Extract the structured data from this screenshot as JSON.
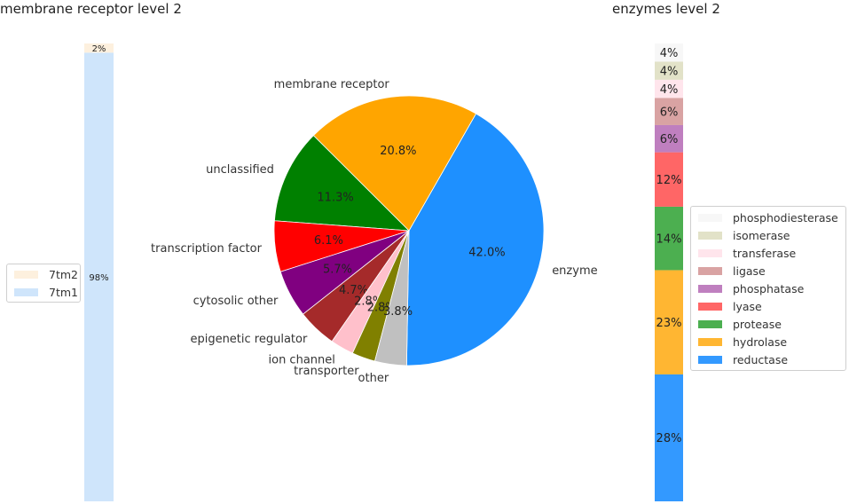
{
  "chart_data": [
    {
      "type": "bar",
      "subtype": "stacked-100",
      "title": "membrane receptor level 2",
      "segments_bottom_to_top": [
        {
          "name": "7tm1",
          "value": 98,
          "label": "98%",
          "color": "#cfe5fb"
        },
        {
          "name": "7tm2",
          "value": 2,
          "label": "2%",
          "color": "#fdf0de"
        }
      ],
      "legend": [
        "7tm2",
        "7tm1"
      ],
      "legend_position": "left"
    },
    {
      "type": "pie",
      "title": "",
      "startangle": -91,
      "direction": "counterclockwise",
      "slices": [
        {
          "name": "enzyme",
          "value": 42.0,
          "label": "42.0%",
          "color": "#1e90ff"
        },
        {
          "name": "membrane receptor",
          "value": 20.8,
          "label": "20.8%",
          "color": "#ffa500"
        },
        {
          "name": "unclassified",
          "value": 11.3,
          "label": "11.3%",
          "color": "#008000"
        },
        {
          "name": "transcription factor",
          "value": 6.1,
          "label": "6.1%",
          "color": "#ff0000"
        },
        {
          "name": "cytosolic other",
          "value": 5.7,
          "label": "5.7%",
          "color": "#800080"
        },
        {
          "name": "epigenetic regulator",
          "value": 4.7,
          "label": "4.7%",
          "color": "#a52a2a"
        },
        {
          "name": "ion channel",
          "value": 2.8,
          "label": "2.8%",
          "color": "#ffc0cb"
        },
        {
          "name": "transporter",
          "value": 2.8,
          "label": "2.8%",
          "color": "#808000"
        },
        {
          "name": "other",
          "value": 3.8,
          "label": "3.8%",
          "color": "#c0c0c0"
        }
      ]
    },
    {
      "type": "bar",
      "subtype": "stacked-100",
      "title": "enzymes level 2",
      "segments_bottom_to_top": [
        {
          "name": "reductase",
          "value": 28,
          "label": "28%",
          "color": "#3399ff"
        },
        {
          "name": "hydrolase",
          "value": 23,
          "label": "23%",
          "color": "#ffb632"
        },
        {
          "name": "protease",
          "value": 14,
          "label": "14%",
          "color": "#4caf50"
        },
        {
          "name": "lyase",
          "value": 12,
          "label": "12%",
          "color": "#ff6666"
        },
        {
          "name": "phosphatase",
          "value": 6,
          "label": "6%",
          "color": "#bf7fbf"
        },
        {
          "name": "ligase",
          "value": 6,
          "label": "6%",
          "color": "#d9a3a3"
        },
        {
          "name": "transferase",
          "value": 4,
          "label": "4%",
          "color": "#ffe5ec"
        },
        {
          "name": "isomerase",
          "value": 4,
          "label": "4%",
          "color": "#e2e2c8"
        },
        {
          "name": "phosphodiesterase",
          "value": 4,
          "label": "4%",
          "color": "#f7f7f7"
        }
      ],
      "legend": [
        "phosphodiesterase",
        "isomerase",
        "transferase",
        "ligase",
        "phosphatase",
        "lyase",
        "protease",
        "hydrolase",
        "reductase"
      ],
      "legend_position": "right"
    }
  ],
  "titles": {
    "left": "membrane receptor level 2",
    "right": "enzymes level 2"
  }
}
